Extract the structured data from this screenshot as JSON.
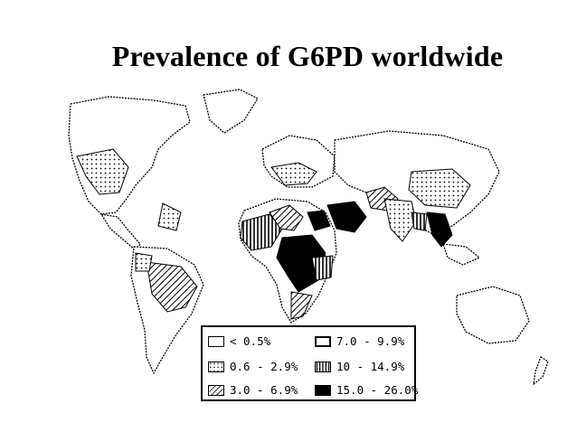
{
  "title": "Prevalence of G6PD worldwide",
  "legend": {
    "items": [
      {
        "label": "< 0.5%",
        "pattern": "none"
      },
      {
        "label": "7.0 - 9.9%",
        "pattern": "none-thick"
      },
      {
        "label": "0.6 - 2.9%",
        "pattern": "dots"
      },
      {
        "label": "10 - 14.9%",
        "pattern": "vertical"
      },
      {
        "label": "3.0 - 6.9%",
        "pattern": "diagonal"
      },
      {
        "label": "15.0 - 26.0%",
        "pattern": "solid"
      }
    ]
  },
  "colors": {
    "ink": "#000000",
    "paper": "#ffffff"
  }
}
